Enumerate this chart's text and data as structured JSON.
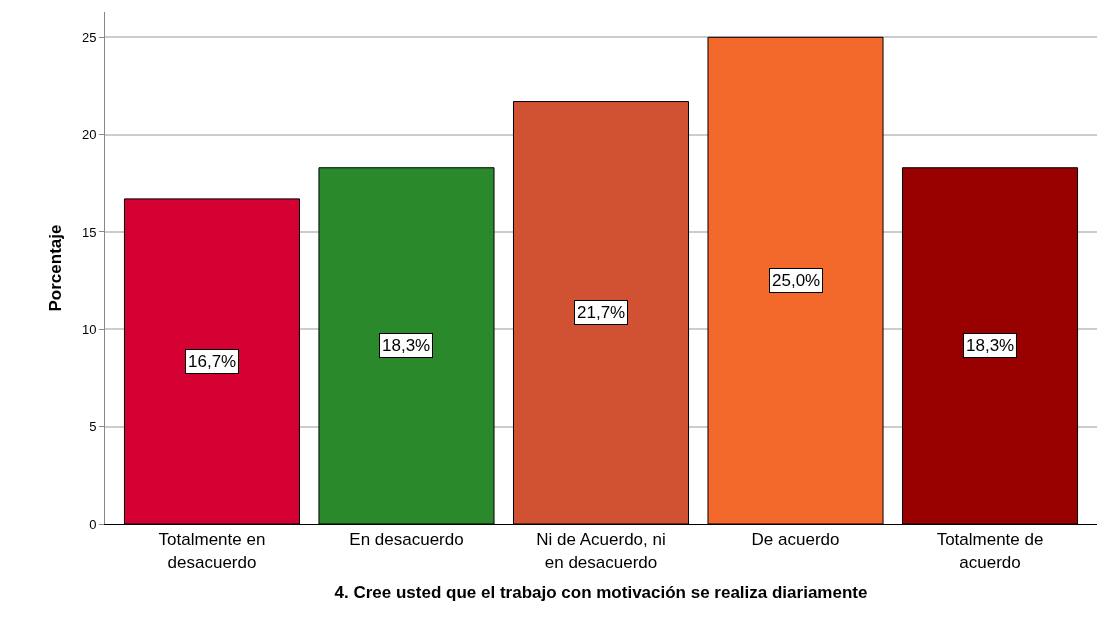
{
  "chart_data": {
    "type": "bar",
    "xlabel": "4. Cree usted que el trabajo con motivación se realiza diariamente",
    "ylabel": "Porcentaje",
    "categories": [
      "Totalmente en\ndesacuerdo",
      "En desacuerdo",
      "Ni de Acuerdo, ni\nen desacuerdo",
      "De acuerdo",
      "Totalmente de\nacuerdo"
    ],
    "values": [
      16.7,
      18.3,
      21.7,
      25.0,
      18.3
    ],
    "colors": [
      "#d50032",
      "#2a892b",
      "#d15233",
      "#f2692b",
      "#990000"
    ],
    "value_labels": [
      "16,7%",
      "18,3%",
      "21,7%",
      "25,0%",
      "18,3%"
    ],
    "ylim": [
      0,
      26.3
    ],
    "yticks": [
      0,
      5,
      10,
      15,
      20,
      25
    ],
    "grid": "y"
  }
}
